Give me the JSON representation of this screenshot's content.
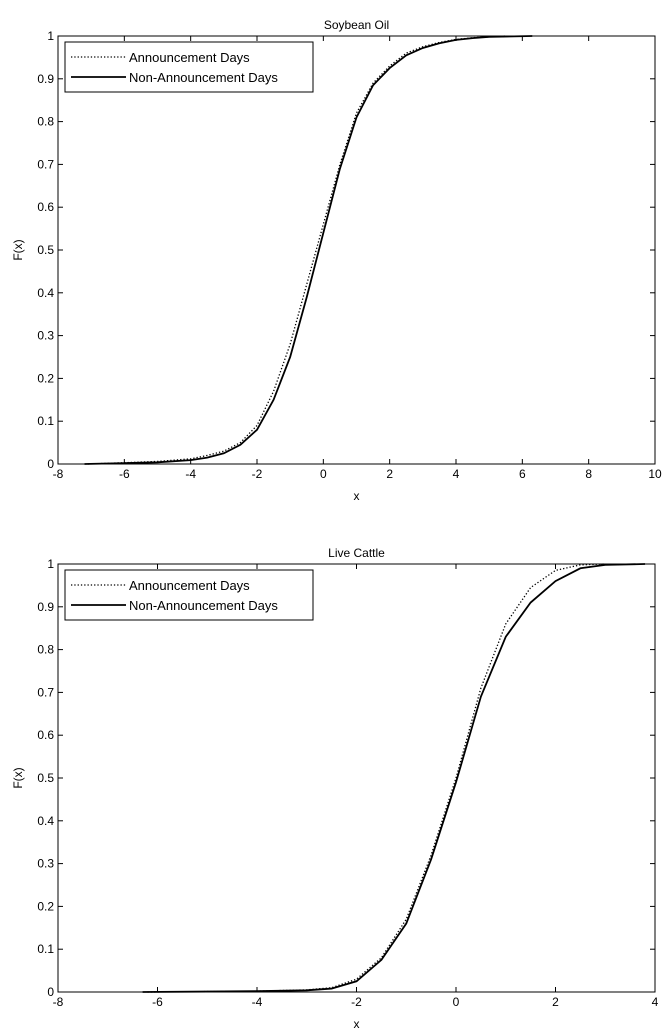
{
  "chart_data": [
    {
      "type": "line",
      "title": "Soybean Oil",
      "xlabel": "x",
      "ylabel": "F(x)",
      "xlim": [
        -8,
        10
      ],
      "ylim": [
        0,
        1
      ],
      "xticks": [
        -8,
        -6,
        -4,
        -2,
        0,
        2,
        4,
        6,
        8,
        10
      ],
      "yticks": [
        0,
        0.1,
        0.2,
        0.3,
        0.4,
        0.5,
        0.6,
        0.7,
        0.8,
        0.9,
        1
      ],
      "grid": false,
      "legend_position": "top-left",
      "series": [
        {
          "name": "Announcement Days",
          "style": "dotted",
          "color": "#000000",
          "x": [
            -7.1,
            -6.0,
            -5.0,
            -4.0,
            -3.5,
            -3.0,
            -2.5,
            -2.0,
            -1.5,
            -1.0,
            -0.5,
            0.0,
            0.5,
            1.0,
            1.5,
            2.0,
            2.5,
            3.0,
            3.5,
            4.0,
            4.5,
            5.0,
            5.5
          ],
          "y": [
            0.0,
            0.003,
            0.006,
            0.012,
            0.02,
            0.03,
            0.05,
            0.09,
            0.17,
            0.28,
            0.42,
            0.56,
            0.7,
            0.82,
            0.89,
            0.93,
            0.96,
            0.975,
            0.985,
            0.992,
            0.996,
            0.998,
            1.0
          ]
        },
        {
          "name": "Non-Announcement Days",
          "style": "solid",
          "color": "#000000",
          "x": [
            -7.2,
            -6.0,
            -5.0,
            -4.0,
            -3.5,
            -3.0,
            -2.5,
            -2.0,
            -1.5,
            -1.0,
            -0.5,
            0.0,
            0.5,
            1.0,
            1.5,
            2.0,
            2.5,
            3.0,
            3.5,
            4.0,
            4.5,
            5.0,
            6.3
          ],
          "y": [
            0.0,
            0.002,
            0.004,
            0.009,
            0.015,
            0.025,
            0.045,
            0.08,
            0.15,
            0.25,
            0.39,
            0.54,
            0.69,
            0.81,
            0.885,
            0.925,
            0.955,
            0.972,
            0.983,
            0.991,
            0.995,
            0.998,
            1.0
          ]
        }
      ]
    },
    {
      "type": "line",
      "title": "Live Cattle",
      "xlabel": "x",
      "ylabel": "F(x)",
      "xlim": [
        -8,
        4
      ],
      "ylim": [
        0,
        1
      ],
      "xticks": [
        -8,
        -6,
        -4,
        -2,
        0,
        2,
        4
      ],
      "yticks": [
        0,
        0.1,
        0.2,
        0.3,
        0.4,
        0.5,
        0.6,
        0.7,
        0.8,
        0.9,
        1
      ],
      "grid": false,
      "legend_position": "top-left",
      "series": [
        {
          "name": "Announcement Days",
          "style": "dotted",
          "color": "#000000",
          "x": [
            -6.2,
            -5.0,
            -4.0,
            -3.0,
            -2.5,
            -2.0,
            -1.5,
            -1.0,
            -0.5,
            0.0,
            0.5,
            1.0,
            1.5,
            2.0,
            2.5,
            3.0
          ],
          "y": [
            0.0,
            0.001,
            0.002,
            0.005,
            0.01,
            0.03,
            0.08,
            0.17,
            0.32,
            0.5,
            0.71,
            0.86,
            0.945,
            0.985,
            0.998,
            1.0
          ]
        },
        {
          "name": "Non-Announcement Days",
          "style": "solid",
          "color": "#000000",
          "x": [
            -6.3,
            -5.0,
            -4.0,
            -3.0,
            -2.5,
            -2.0,
            -1.5,
            -1.0,
            -0.5,
            0.0,
            0.5,
            1.0,
            1.5,
            2.0,
            2.5,
            3.0,
            3.8
          ],
          "y": [
            0.0,
            0.001,
            0.002,
            0.004,
            0.008,
            0.025,
            0.075,
            0.16,
            0.31,
            0.49,
            0.69,
            0.83,
            0.91,
            0.96,
            0.99,
            0.998,
            1.0
          ]
        }
      ]
    }
  ]
}
